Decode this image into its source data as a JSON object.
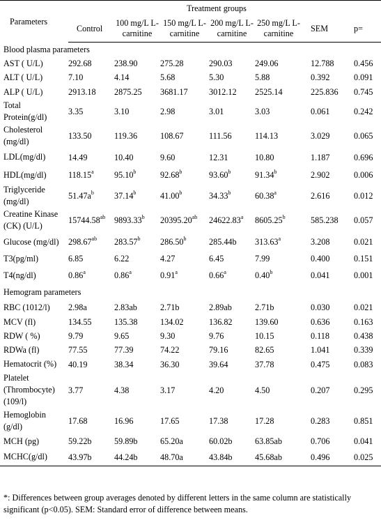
{
  "header": {
    "parameters": "Parameters",
    "treatment_groups": "Treatment groups",
    "columns": [
      "Control",
      "100 mg/L L-carnitine",
      "150 mg/L L-carnitine",
      "200 mg/L L-carnitine",
      "250 mg/L L-carnitine",
      "SEM",
      "p="
    ]
  },
  "sections": [
    {
      "title": "Blood plasma parameters",
      "rows": [
        {
          "name": "AST ( U/L)",
          "values": [
            [
              "292.68",
              ""
            ],
            [
              "238.90",
              ""
            ],
            [
              "275.28",
              ""
            ],
            [
              "290.03",
              ""
            ],
            [
              "249.06",
              ""
            ],
            [
              "12.788",
              ""
            ],
            [
              "0.456",
              ""
            ]
          ]
        },
        {
          "name": "ALT ( U/L)",
          "values": [
            [
              "7.10",
              ""
            ],
            [
              "4.14",
              ""
            ],
            [
              "5.68",
              ""
            ],
            [
              "5.30",
              ""
            ],
            [
              "5.88",
              ""
            ],
            [
              "0.392",
              ""
            ],
            [
              "0.091",
              ""
            ]
          ]
        },
        {
          "name": "ALP ( U/L)",
          "values": [
            [
              "2913.18",
              ""
            ],
            [
              "2875.25",
              ""
            ],
            [
              "3681.17",
              ""
            ],
            [
              "3012.12",
              ""
            ],
            [
              "2525.14",
              ""
            ],
            [
              "225.836",
              ""
            ],
            [
              "0.745",
              ""
            ]
          ]
        },
        {
          "name": "Total Protein(g/dl)",
          "values": [
            [
              "3.35",
              ""
            ],
            [
              "3.10",
              ""
            ],
            [
              "2.98",
              ""
            ],
            [
              "3.01",
              ""
            ],
            [
              "3.03",
              ""
            ],
            [
              "0.061",
              ""
            ],
            [
              "0.242",
              ""
            ]
          ]
        },
        {
          "name": "Cholesterol (mg/dl)",
          "values": [
            [
              "133.50",
              ""
            ],
            [
              "119.36",
              ""
            ],
            [
              "108.67",
              ""
            ],
            [
              "111.56",
              ""
            ],
            [
              "114.13",
              ""
            ],
            [
              "3.029",
              ""
            ],
            [
              "0.065",
              ""
            ]
          ]
        },
        {
          "name": "LDL(mg/dl)",
          "values": [
            [
              "14.49",
              ""
            ],
            [
              "10.40",
              ""
            ],
            [
              "9.60",
              ""
            ],
            [
              "12.31",
              ""
            ],
            [
              "10.80",
              ""
            ],
            [
              "1.187",
              ""
            ],
            [
              "0.696",
              ""
            ]
          ]
        },
        {
          "name": "HDL(mg/dl)",
          "values": [
            [
              "118.15",
              "a"
            ],
            [
              "95.10",
              "b"
            ],
            [
              "92.68",
              "b"
            ],
            [
              "93.60",
              "b"
            ],
            [
              "91.34",
              "b"
            ],
            [
              "2.902",
              ""
            ],
            [
              "0.006",
              ""
            ]
          ]
        },
        {
          "name": "Triglyceride (mg/dl)",
          "values": [
            [
              "51.47a",
              "b"
            ],
            [
              "37.14",
              "b"
            ],
            [
              "41.00",
              "b"
            ],
            [
              "34.33",
              "b"
            ],
            [
              "60.38",
              "a"
            ],
            [
              "2.616",
              ""
            ],
            [
              "0.012",
              ""
            ]
          ]
        },
        {
          "name": "Creatine Kinase (CK) (U/L)",
          "values": [
            [
              "15744.58",
              "ab"
            ],
            [
              "9893.33",
              "b"
            ],
            [
              "20395.20",
              "ab"
            ],
            [
              "24622.83",
              "a"
            ],
            [
              "8605.25",
              "b"
            ],
            [
              "585.238",
              ""
            ],
            [
              "0.057",
              ""
            ]
          ]
        },
        {
          "name": "Glucose (mg/dl)",
          "values": [
            [
              "298.67",
              "ab"
            ],
            [
              "283.57",
              "b"
            ],
            [
              "286.50",
              "b"
            ],
            [
              "285.44b",
              ""
            ],
            [
              "313.63",
              "a"
            ],
            [
              "3.208",
              ""
            ],
            [
              "0.021",
              ""
            ]
          ]
        },
        {
          "name": "T3(pg/ml)",
          "values": [
            [
              "6.85",
              ""
            ],
            [
              "6.22",
              ""
            ],
            [
              "4.27",
              ""
            ],
            [
              "6.45",
              ""
            ],
            [
              "7.99",
              ""
            ],
            [
              "0.400",
              ""
            ],
            [
              "0.151",
              ""
            ]
          ]
        },
        {
          "name": "T4(ng/dl)",
          "values": [
            [
              "0.86",
              "a"
            ],
            [
              "0.86",
              "a"
            ],
            [
              "0.91",
              "a"
            ],
            [
              "0.66",
              "a"
            ],
            [
              "0.40",
              "b"
            ],
            [
              "0.041",
              ""
            ],
            [
              "0.001",
              ""
            ]
          ]
        }
      ]
    },
    {
      "title": "Hemogram parameters",
      "rows": [
        {
          "name": "RBC (1012/l)",
          "values": [
            [
              "2.98a",
              ""
            ],
            [
              "2.83ab",
              ""
            ],
            [
              "2.71b",
              ""
            ],
            [
              "2.89ab",
              ""
            ],
            [
              "2.71b",
              ""
            ],
            [
              "0.030",
              ""
            ],
            [
              "0.021",
              ""
            ]
          ]
        },
        {
          "name": "MCV (fl)",
          "values": [
            [
              "134.55",
              ""
            ],
            [
              "135.38",
              ""
            ],
            [
              "134.02",
              ""
            ],
            [
              "136.82",
              ""
            ],
            [
              "139.60",
              ""
            ],
            [
              "0.636",
              ""
            ],
            [
              "0.163",
              ""
            ]
          ]
        },
        {
          "name": "RDW ( %)",
          "values": [
            [
              "9.79",
              ""
            ],
            [
              "9.65",
              ""
            ],
            [
              "9.30",
              ""
            ],
            [
              "9.76",
              ""
            ],
            [
              "10.15",
              ""
            ],
            [
              "0.118",
              ""
            ],
            [
              "0.438",
              ""
            ]
          ]
        },
        {
          "name": "RDWa (fl)",
          "values": [
            [
              "77.55",
              ""
            ],
            [
              "77.39",
              ""
            ],
            [
              "74.22",
              ""
            ],
            [
              "79.16",
              ""
            ],
            [
              "82.65",
              ""
            ],
            [
              "1.041",
              ""
            ],
            [
              "0.339",
              ""
            ]
          ]
        },
        {
          "name": "Hematocrit (%)",
          "values": [
            [
              "40.19",
              ""
            ],
            [
              "38.34",
              ""
            ],
            [
              "36.30",
              ""
            ],
            [
              "39.64",
              ""
            ],
            [
              "37.78",
              ""
            ],
            [
              "0.475",
              ""
            ],
            [
              "0.083",
              ""
            ]
          ]
        },
        {
          "name": "Platelet (Thrombocyte) (109/l)",
          "values": [
            [
              "3.77",
              ""
            ],
            [
              "4.38",
              ""
            ],
            [
              "3.17",
              ""
            ],
            [
              "4.20",
              ""
            ],
            [
              "4.50",
              ""
            ],
            [
              "0.207",
              ""
            ],
            [
              "0.295",
              ""
            ]
          ]
        },
        {
          "name": "Hemoglobin (g/dl)",
          "values": [
            [
              "17.68",
              ""
            ],
            [
              "16.96",
              ""
            ],
            [
              "17.65",
              ""
            ],
            [
              "17.38",
              ""
            ],
            [
              "17.28",
              ""
            ],
            [
              "0.283",
              ""
            ],
            [
              "0.851",
              ""
            ]
          ]
        },
        {
          "name": "MCH (pg)",
          "values": [
            [
              "59.22b",
              ""
            ],
            [
              "59.89b",
              ""
            ],
            [
              "65.20a",
              ""
            ],
            [
              "60.02b",
              ""
            ],
            [
              "63.85ab",
              ""
            ],
            [
              "0.706",
              ""
            ],
            [
              "0.041",
              ""
            ]
          ]
        },
        {
          "name": "MCHC(g/dl)",
          "values": [
            [
              "43.97b",
              ""
            ],
            [
              "44.24b",
              ""
            ],
            [
              "48.70a",
              ""
            ],
            [
              "43.84b",
              ""
            ],
            [
              "45.68ab",
              ""
            ],
            [
              "0.496",
              ""
            ],
            [
              "0.025",
              ""
            ]
          ]
        }
      ]
    }
  ],
  "footnote": "*: Differences between group averages denoted by different letters in the same column are statistically significant (p<0.05). SEM: Standard error of difference between means."
}
